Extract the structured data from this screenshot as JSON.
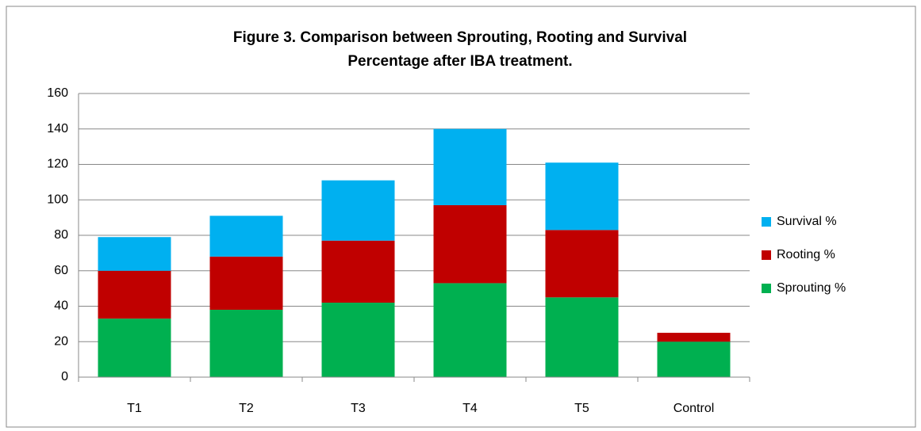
{
  "chart_data": {
    "type": "stacked_bar",
    "title": [
      "Figure 3. Comparison between Sprouting, Rooting and Survival",
      "Percentage after IBA treatment."
    ],
    "categories": [
      "T1",
      "T2",
      "T3",
      "T4",
      "T5",
      "Control"
    ],
    "series": [
      {
        "name": "Sprouting %",
        "color": "#00b050",
        "values": [
          33,
          38,
          42,
          53,
          45,
          20
        ]
      },
      {
        "name": "Rooting %",
        "color": "#c00000",
        "values": [
          27,
          30,
          35,
          44,
          38,
          5
        ]
      },
      {
        "name": "Survival %",
        "color": "#00b0f0",
        "values": [
          19,
          23,
          34,
          43,
          38,
          0
        ]
      }
    ],
    "ylim": [
      0,
      160
    ],
    "yticks": [
      0,
      20,
      40,
      60,
      80,
      100,
      120,
      140,
      160
    ],
    "grid": true,
    "legend": "right"
  }
}
